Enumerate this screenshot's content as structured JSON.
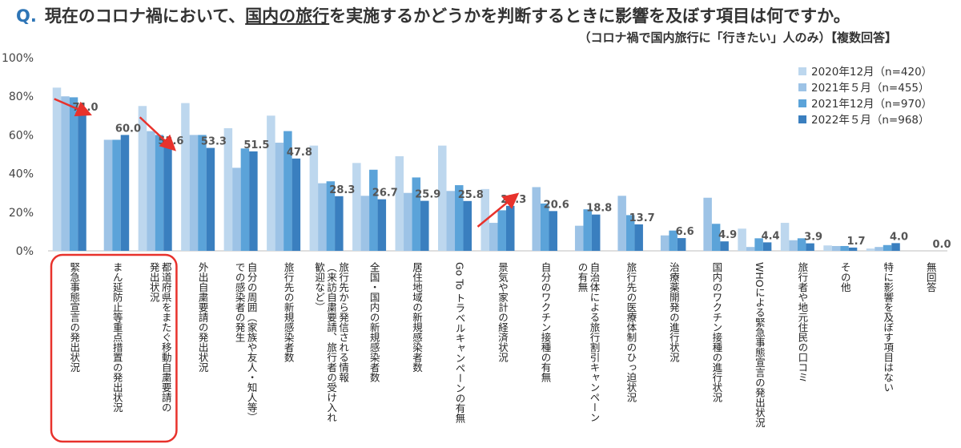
{
  "title": {
    "q": "Q.",
    "pre": "現在のコロナ禍において、",
    "underlined": "国内の旅行",
    "post": "を実施するかどうかを判断するときに影響を及ぼす項目は何ですか。"
  },
  "subtitle": "（コロナ禍で国内旅行に「行きたい」人のみ）【複数回答】",
  "colors": [
    "#bdd7ee",
    "#9dc3e6",
    "#5ba3d9",
    "#3a7fbf"
  ],
  "highlight_color": "#e8322c",
  "chart_data": {
    "type": "bar",
    "ylim": [
      0,
      100
    ],
    "yticks": [
      "0%",
      "20%",
      "40%",
      "60%",
      "80%",
      "100%"
    ],
    "grid": false,
    "legend_position": "top-right",
    "categories": [
      [
        "緊急事態宣言の発出状況"
      ],
      [
        "まん延防止等重点措置の発出状況"
      ],
      [
        "都道府県をまたぐ移動自粛要請の",
        "発出状況"
      ],
      [
        "外出自粛要請の発出状況"
      ],
      [
        "自分の周囲（家族や友人・知人等）",
        "での感染者の発生"
      ],
      [
        "旅行先の新規感染者数"
      ],
      [
        "旅行先から発信される情報",
        "（来訪自粛要請、旅行者の受け入れ",
        "歓迎など）"
      ],
      [
        "全国・国内の新規感染者数"
      ],
      [
        "居住地域の新規感染者数"
      ],
      [
        "Go To トラベルキャンペーンの有無"
      ],
      [
        "景気や家計の経済状況"
      ],
      [
        "自分のワクチン接種の有無"
      ],
      [
        "自治体による旅行割引キャンペーン",
        "の有無"
      ],
      [
        "旅行先の医療体制のひっ迫状況"
      ],
      [
        "治療薬開発の進行状況"
      ],
      [
        "国内のワクチン接種の進行状況"
      ],
      [
        "WHOによる緊急事態宣言の発出状況"
      ],
      [
        "旅行者や地元住民の口コミ"
      ],
      [
        "その他"
      ],
      [
        "特に影響を及ぼす項目はない"
      ],
      [
        "無回答"
      ]
    ],
    "series": [
      {
        "name": "2020年12月（n=420）",
        "values": [
          84.5,
          null,
          75.0,
          76.5,
          63.5,
          70.0,
          54.5,
          45.5,
          49.0,
          54.5,
          32.0,
          null,
          null,
          null,
          null,
          null,
          11.5,
          14.5,
          2.8,
          1.2,
          0.0
        ]
      },
      {
        "name": "2021年５月（n=455）",
        "values": [
          80.0,
          57.5,
          62.0,
          60.0,
          43.0,
          56.0,
          35.0,
          28.5,
          30.0,
          31.0,
          14.5,
          33.0,
          13.0,
          28.5,
          8.0,
          27.5,
          2.0,
          5.5,
          2.5,
          2.0,
          0.0
        ]
      },
      {
        "name": "2021年12月（n=970）",
        "values": [
          79.5,
          57.5,
          60.0,
          60.0,
          53.0,
          62.0,
          36.0,
          42.0,
          38.0,
          34.0,
          21.0,
          24.5,
          21.5,
          18.5,
          10.5,
          14.0,
          6.5,
          6.5,
          2.5,
          3.0,
          0.0
        ]
      },
      {
        "name": "2022年５月（n=968）",
        "values": [
          71.0,
          60.0,
          53.6,
          53.3,
          51.5,
          47.8,
          28.3,
          26.7,
          25.9,
          25.8,
          23.3,
          20.6,
          18.8,
          13.7,
          6.6,
          4.9,
          4.4,
          3.9,
          1.7,
          4.0,
          0.0
        ]
      }
    ],
    "data_labels": [
      "71.0",
      "60.0",
      "53.6",
      "53.3",
      "51.5",
      "47.8",
      "28.3",
      "26.7",
      "25.9",
      "25.8",
      "23.3",
      "20.6",
      "18.8",
      "13.7",
      "6.6",
      "4.9",
      "4.4",
      "3.9",
      "1.7",
      "4.0",
      "0.0"
    ],
    "annotations": [
      {
        "type": "arrow",
        "category": 0,
        "direction": "down"
      },
      {
        "type": "arrow",
        "category": 2,
        "direction": "down"
      },
      {
        "type": "arrow",
        "category": 10,
        "direction": "up"
      },
      {
        "type": "highlight-box",
        "categories": [
          0,
          2
        ]
      }
    ]
  }
}
